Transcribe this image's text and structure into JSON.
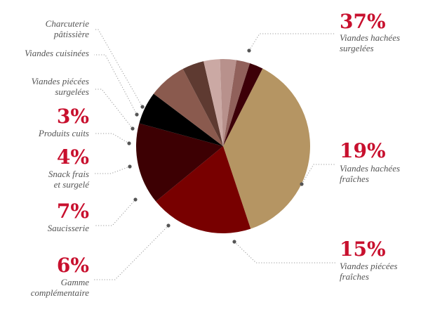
{
  "chart_data": {
    "type": "pie",
    "start_angle_deg": -63,
    "slices": [
      {
        "id": "viandes-hachees-surgelees",
        "value": 37,
        "pct_label": "37%",
        "label_lines": [
          "Viandes hachées",
          "surgelées"
        ],
        "color": "#b59563"
      },
      {
        "id": "viandes-hachees-fraiches",
        "value": 19,
        "pct_label": "19%",
        "label_lines": [
          "Viandes hachées",
          "fraîches"
        ],
        "color": "#780000"
      },
      {
        "id": "viandes-piecees-fraiches",
        "value": 15,
        "pct_label": "15%",
        "label_lines": [
          "Viandes piécées",
          "fraîches"
        ],
        "color": "#3d0003"
      },
      {
        "id": "gamme-complementaire",
        "value": 6,
        "pct_label": "6%",
        "label_lines": [
          "Gamme",
          "complémentaire"
        ],
        "color": "#000000"
      },
      {
        "id": "saucisserie",
        "value": 7,
        "pct_label": "7%",
        "label_lines": [
          "Saucisserie"
        ],
        "color": "#8a5a4e"
      },
      {
        "id": "snack-frais-et-surgele",
        "value": 4,
        "pct_label": "4%",
        "label_lines": [
          "Snack frais",
          "et surgelé"
        ],
        "color": "#5e3a31"
      },
      {
        "id": "produits-cuits",
        "value": 3,
        "pct_label": "3%",
        "label_lines": [
          "Produits cuits"
        ],
        "color": "#cba9a4"
      },
      {
        "id": "viandes-piecees-surgelees",
        "value": 3,
        "pct_label": "",
        "label_lines": [
          "Viandes piécées",
          "surgelées"
        ],
        "color": "#b8918c"
      },
      {
        "id": "viandes-cuisinees",
        "value": 2.5,
        "pct_label": "",
        "label_lines": [
          "Viandes cuisinées"
        ],
        "color": "#91615b"
      },
      {
        "id": "charcuterie-patisserie",
        "value": 2.5,
        "pct_label": "",
        "label_lines": [
          "Charcuterie",
          "pâtissière"
        ],
        "color": "#3d0008"
      }
    ]
  }
}
